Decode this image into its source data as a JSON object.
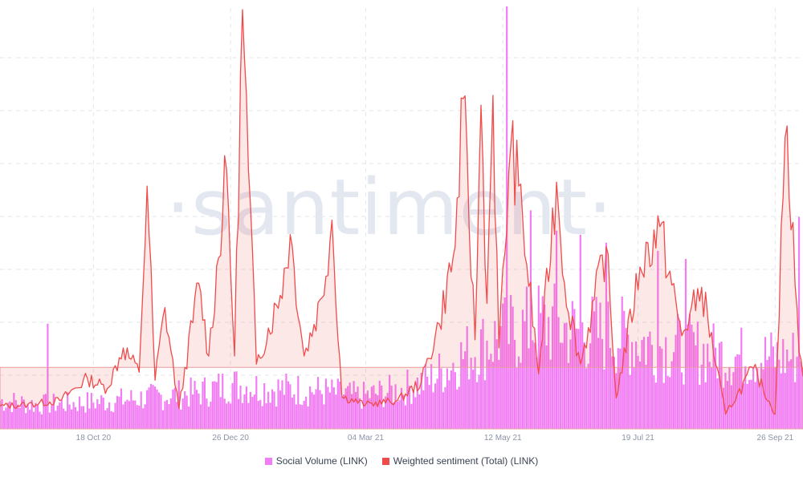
{
  "colors": {
    "social_volume": "#f27cf4",
    "sentiment": "#f04b4b",
    "sentiment_fill": "#fbe1e1",
    "grid": "#e3e6ec",
    "axis_text": "#8a93a6",
    "watermark": "#e3e7f0"
  },
  "watermark": "·santiment·",
  "chart_data": {
    "type": "bar+line",
    "grid": true,
    "legend_position": "bottom-center",
    "x_start": "2020-09-01",
    "x_end": "2021-10-10",
    "xticks": [
      "18 Oct 20",
      "26 Dec 20",
      "04 Mar 21",
      "12 May 21",
      "19 Jul 21",
      "26 Sep 21"
    ],
    "ylim": [
      0,
      520
    ],
    "sentiment_baseline": 76,
    "series": [
      {
        "name": "Social Volume (LINK)",
        "type": "bar",
        "color": "#f27cf4",
        "points": [
          [
            "2020-09-01",
            35
          ],
          [
            "2020-09-20",
            30
          ],
          [
            "2020-10-10",
            32
          ],
          [
            "2020-10-30",
            35
          ],
          [
            "2020-11-20",
            40
          ],
          [
            "2020-12-10",
            45
          ],
          [
            "2020-12-26",
            55
          ],
          [
            "2021-01-15",
            50
          ],
          [
            "2021-02-05",
            48
          ],
          [
            "2021-03-01",
            40
          ],
          [
            "2021-03-20",
            48
          ],
          [
            "2021-04-05",
            60
          ],
          [
            "2021-04-25",
            95
          ],
          [
            "2021-05-12",
            115
          ],
          [
            "2021-06-01",
            130
          ],
          [
            "2021-06-20",
            120
          ],
          [
            "2021-07-10",
            115
          ],
          [
            "2021-07-25",
            105
          ],
          [
            "2021-08-15",
            98
          ],
          [
            "2021-09-01",
            90
          ],
          [
            "2021-09-26",
            88
          ],
          [
            "2021-10-10",
            90
          ]
        ],
        "spikes": [
          [
            "2020-09-25",
            130
          ],
          [
            "2021-05-14",
            522
          ],
          [
            "2021-05-26",
            270
          ],
          [
            "2021-06-08",
            245
          ],
          [
            "2021-06-20",
            240
          ],
          [
            "2021-07-03",
            230
          ],
          [
            "2021-07-29",
            220
          ],
          [
            "2021-08-12",
            210
          ],
          [
            "2021-10-08",
            262
          ]
        ]
      },
      {
        "name": "Weighted sentiment (Total) (LINK)",
        "type": "line",
        "color": "#f04b4b",
        "points": [
          [
            "2020-09-01",
            28
          ],
          [
            "2020-09-15",
            30
          ],
          [
            "2020-10-01",
            35
          ],
          [
            "2020-10-15",
            62
          ],
          [
            "2020-10-25",
            50
          ],
          [
            "2020-11-02",
            100
          ],
          [
            "2020-11-10",
            70
          ],
          [
            "2020-11-14",
            300
          ],
          [
            "2020-11-18",
            60
          ],
          [
            "2020-11-23",
            150
          ],
          [
            "2020-11-30",
            25
          ],
          [
            "2020-12-10",
            180
          ],
          [
            "2020-12-15",
            90
          ],
          [
            "2020-12-24",
            320
          ],
          [
            "2020-12-28",
            90
          ],
          [
            "2021-01-01",
            518
          ],
          [
            "2021-01-04",
            320
          ],
          [
            "2021-01-08",
            80
          ],
          [
            "2021-01-20",
            165
          ],
          [
            "2021-01-25",
            240
          ],
          [
            "2021-02-01",
            90
          ],
          [
            "2021-02-10",
            162
          ],
          [
            "2021-02-15",
            258
          ],
          [
            "2021-02-20",
            40
          ],
          [
            "2021-03-04",
            30
          ],
          [
            "2021-03-20",
            35
          ],
          [
            "2021-04-01",
            58
          ],
          [
            "2021-04-10",
            130
          ],
          [
            "2021-04-18",
            225
          ],
          [
            "2021-04-22",
            408
          ],
          [
            "2021-04-28",
            110
          ],
          [
            "2021-05-01",
            400
          ],
          [
            "2021-05-04",
            155
          ],
          [
            "2021-05-07",
            412
          ],
          [
            "2021-05-10",
            100
          ],
          [
            "2021-05-16",
            350
          ],
          [
            "2021-05-20",
            300
          ],
          [
            "2021-05-30",
            68
          ],
          [
            "2021-06-08",
            305
          ],
          [
            "2021-06-12",
            180
          ],
          [
            "2021-06-20",
            80
          ],
          [
            "2021-07-03",
            225
          ],
          [
            "2021-07-08",
            38
          ],
          [
            "2021-07-20",
            200
          ],
          [
            "2021-07-30",
            250
          ],
          [
            "2021-08-10",
            115
          ],
          [
            "2021-08-20",
            175
          ],
          [
            "2021-09-01",
            18
          ],
          [
            "2021-09-15",
            75
          ],
          [
            "2021-09-26",
            18
          ],
          [
            "2021-10-01",
            360
          ],
          [
            "2021-10-05",
            255
          ],
          [
            "2021-10-08",
            95
          ],
          [
            "2021-10-10",
            65
          ]
        ]
      }
    ]
  },
  "legend": [
    {
      "label": "Social Volume (LINK)",
      "color": "#f27cf4"
    },
    {
      "label": "Weighted sentiment (Total) (LINK)",
      "color": "#f04b4b"
    }
  ]
}
